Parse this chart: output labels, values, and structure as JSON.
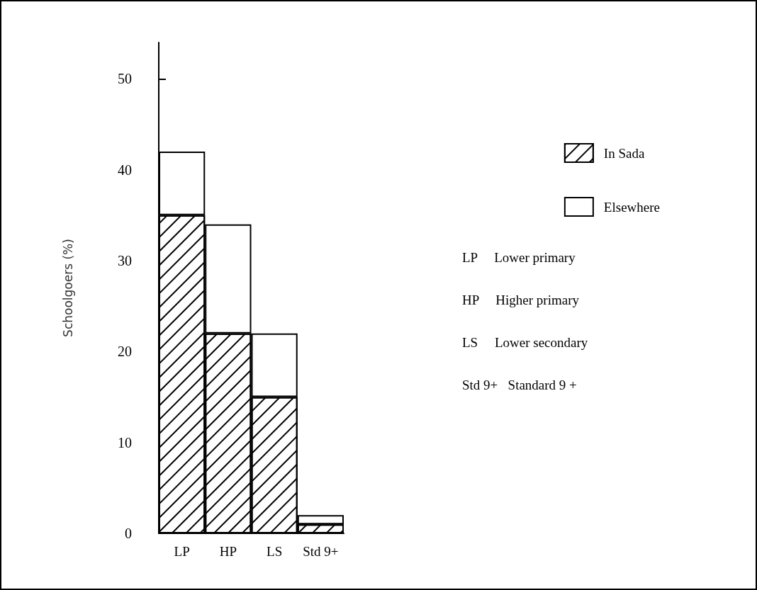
{
  "chart_data": {
    "type": "bar",
    "ylabel": "Schoolgoers (%)",
    "categories": [
      "LP",
      "HP",
      "LS",
      "Std 9+"
    ],
    "stacked": true,
    "series": [
      {
        "name": "In Sada",
        "color": "#ffffff",
        "values": [
          35,
          22,
          15,
          1
        ]
      },
      {
        "name": "Elsewhere",
        "color": "#ffffff",
        "values": [
          7,
          12,
          7,
          1
        ]
      }
    ],
    "ylim": [
      0,
      54
    ],
    "yticks": [
      0,
      10,
      20,
      30,
      40,
      50
    ],
    "grid": false,
    "legend": "right",
    "annotations": [
      "LP     Lower primary",
      "HP     Higher primary",
      "LS     Lower secondary",
      "Std 9+   Standard 9 +"
    ]
  }
}
